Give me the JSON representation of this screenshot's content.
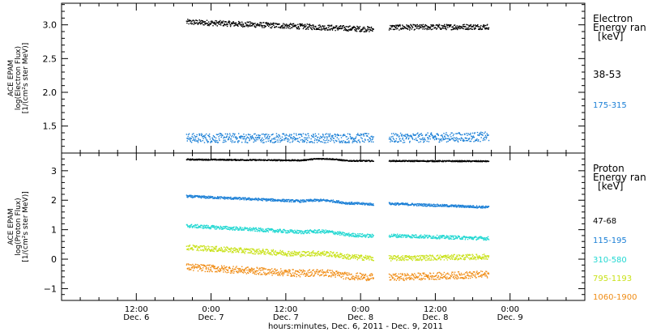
{
  "colors": {
    "axis": "#000000",
    "electron_38_53": "#000000",
    "electron_175_315": "#1a7fd6",
    "proton_47_68": "#000000",
    "proton_115_195": "#1a7fd6",
    "proton_310_580": "#22d8d2",
    "proton_795_1193": "#c9e21a",
    "proton_1060_1900": "#f08c14"
  },
  "chart_data": [
    {
      "type": "scatter",
      "panel": "electron",
      "ylabel_lines": [
        "ACE EPAM",
        "log(Electron Flux)",
        "[1/(cm²s ster MeV)]"
      ],
      "ylim": [
        1.1,
        3.32
      ],
      "yticks": [
        "1.5",
        "2.0",
        "2.5",
        "3.0"
      ],
      "ytick_values": [
        1.5,
        2.0,
        2.5,
        3.0
      ],
      "legend_title_lines": [
        "Electron",
        "Energy ran",
        "[keV]"
      ],
      "series": [
        {
          "name": "38-53",
          "color_key": "electron_38_53",
          "segments": [
            {
              "x_start": 0.833,
              "x_end": 2.083,
              "y_start": 3.05,
              "y_end": 2.94
            },
            {
              "x_start": 2.188,
              "x_end": 2.854,
              "y_start": 2.97,
              "y_end": 2.98
            }
          ],
          "noise": 0.04
        },
        {
          "name": "175-315",
          "color_key": "electron_175_315",
          "segments": [
            {
              "x_start": 0.833,
              "x_end": 2.083,
              "y_start": 1.33,
              "y_end": 1.33
            },
            {
              "x_start": 2.188,
              "x_end": 2.854,
              "y_start": 1.33,
              "y_end": 1.35
            }
          ],
          "noise": 0.07
        }
      ]
    },
    {
      "type": "scatter",
      "panel": "proton",
      "ylabel_lines": [
        "ACE EPAM",
        "log(Proton Flux)",
        "[1/(cm²s ster MeV)]"
      ],
      "ylim": [
        -1.4,
        3.6
      ],
      "yticks": [
        "−1",
        "0",
        "1",
        "2",
        "3"
      ],
      "ytick_values": [
        -1,
        0,
        1,
        2,
        3
      ],
      "legend_title_lines": [
        "Proton",
        "Energy ran",
        "[keV]"
      ],
      "series": [
        {
          "name": "47-68",
          "color_key": "proton_47_68",
          "segments": [
            {
              "x_start": 0.833,
              "x_end": 2.083,
              "y_start": 3.4,
              "y_end": 3.35
            },
            {
              "x_start": 2.188,
              "x_end": 2.854,
              "y_start": 3.35,
              "y_end": 3.34
            }
          ],
          "noise": 0.02
        },
        {
          "name": "115-195",
          "color_key": "proton_115_195",
          "segments": [
            {
              "x_start": 0.833,
              "x_end": 2.083,
              "y_start": 2.15,
              "y_end": 1.88
            },
            {
              "x_start": 2.188,
              "x_end": 2.854,
              "y_start": 1.9,
              "y_end": 1.78
            }
          ],
          "noise": 0.04
        },
        {
          "name": "310-580",
          "color_key": "proton_310_580",
          "segments": [
            {
              "x_start": 0.833,
              "x_end": 2.083,
              "y_start": 1.15,
              "y_end": 0.8
            },
            {
              "x_start": 2.188,
              "x_end": 2.854,
              "y_start": 0.82,
              "y_end": 0.72
            }
          ],
          "noise": 0.06
        },
        {
          "name": "795-1193",
          "color_key": "proton_795_1193",
          "segments": [
            {
              "x_start": 0.833,
              "x_end": 2.083,
              "y_start": 0.42,
              "y_end": 0.05
            },
            {
              "x_start": 2.188,
              "x_end": 2.854,
              "y_start": 0.05,
              "y_end": 0.1
            }
          ],
          "noise": 0.09
        },
        {
          "name": "1060-1900",
          "color_key": "proton_1060_1900",
          "segments": [
            {
              "x_start": 0.833,
              "x_end": 2.083,
              "y_start": -0.25,
              "y_end": -0.6
            },
            {
              "x_start": 2.188,
              "x_end": 2.854,
              "y_start": -0.6,
              "y_end": -0.5
            }
          ],
          "noise": 0.12
        }
      ]
    }
  ],
  "x_axis": {
    "xlabel": "hours:minutes, Dec.  6, 2011 - Dec.  9, 2011",
    "xlim": [
      0,
      3.5
    ],
    "ticks": [
      {
        "x": 0.5,
        "time": "12:00",
        "date": "Dec. 6"
      },
      {
        "x": 1.0,
        "time": "0:00",
        "date": "Dec. 7"
      },
      {
        "x": 1.5,
        "time": "12:00",
        "date": "Dec. 7"
      },
      {
        "x": 2.0,
        "time": "0:00",
        "date": "Dec. 8"
      },
      {
        "x": 2.5,
        "time": "12:00",
        "date": "Dec. 8"
      },
      {
        "x": 3.0,
        "time": "0:00",
        "date": "Dec. 9"
      }
    ]
  }
}
